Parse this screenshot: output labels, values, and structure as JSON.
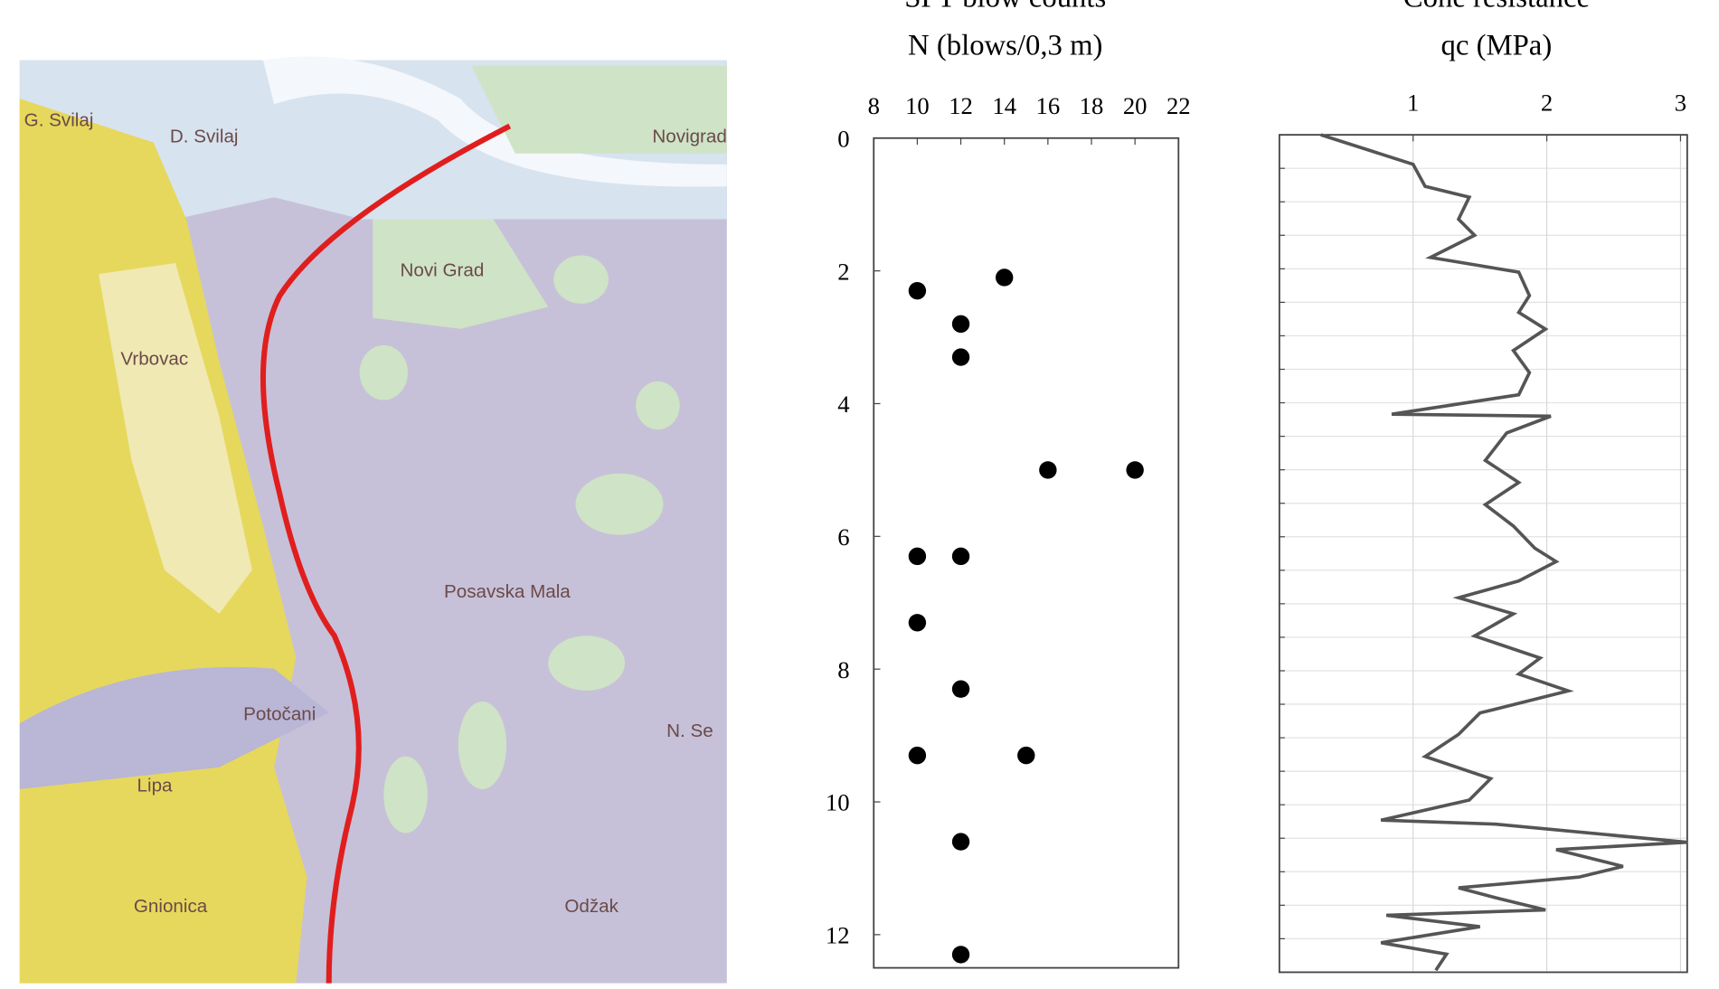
{
  "map_labels": [
    "G. Svilaj",
    "D. Svilaj",
    "Novigrad",
    "Novi Grad",
    "Vrbovac",
    "Posavska Mala",
    "Potočani",
    "N. Se",
    "Odžak",
    "Gnionica",
    "Lipa"
  ],
  "chart_data": [
    {
      "type": "scatter",
      "title": "SPT blow counts",
      "x_label": "N (blows/0,3 m)",
      "x": [
        14,
        10,
        12,
        12,
        16,
        20,
        10,
        12,
        10,
        12,
        10,
        15,
        12,
        12
      ],
      "values": [
        2.1,
        2.3,
        2.8,
        3.3,
        5,
        5,
        6.3,
        6.3,
        7.3,
        8.3,
        9.3,
        9.3,
        10.6,
        12.3
      ],
      "color": "#000000",
      "xlim": [
        8,
        22
      ],
      "xticks": [
        8,
        10,
        12,
        14,
        16,
        18,
        20,
        22
      ],
      "ylim": [
        0,
        12.5
      ],
      "yticks": [
        0,
        2,
        4,
        6,
        8,
        10,
        12
      ],
      "y_reversed": true,
      "grid": false
    },
    {
      "type": "line",
      "title": "Cone resistance",
      "x_label": "qc (MPa)",
      "x": [
        0.31,
        1.0,
        1.09,
        1.42,
        1.34,
        1.46,
        1.13,
        1.79,
        1.87,
        1.79,
        1.99,
        1.75,
        1.87,
        1.79,
        0.84,
        2.03,
        1.7,
        1.54,
        1.79,
        1.54,
        1.75,
        1.91,
        2.07,
        1.79,
        1.34,
        1.75,
        1.46,
        1.95,
        1.79,
        2.16,
        1.5,
        1.34,
        1.09,
        1.58,
        1.42,
        0.76,
        1.62,
        3.05,
        2.07,
        2.57,
        2.24,
        1.34,
        1.66,
        1.99,
        0.8,
        1.5,
        0.76,
        1.25,
        1.17
      ],
      "values": [
        0,
        0.44,
        0.77,
        0.93,
        1.26,
        1.5,
        1.83,
        2.05,
        2.4,
        2.65,
        2.9,
        3.22,
        3.55,
        3.88,
        4.17,
        4.2,
        4.45,
        4.86,
        5.19,
        5.52,
        5.84,
        6.17,
        6.37,
        6.66,
        6.91,
        7.15,
        7.48,
        7.81,
        8.05,
        8.3,
        8.63,
        8.95,
        9.28,
        9.61,
        9.93,
        10.23,
        10.29,
        10.56,
        10.67,
        10.92,
        11.08,
        11.24,
        11.41,
        11.57,
        11.65,
        11.82,
        12.06,
        12.23,
        12.47
      ],
      "color": "#555555",
      "xlim": [
        0,
        3.05
      ],
      "xticks": [
        1,
        2,
        3
      ],
      "ylim": [
        0,
        12.5
      ],
      "yticks": [
        0,
        0.5,
        1,
        1.5,
        2,
        2.5,
        3,
        3.5,
        4,
        4.5,
        5,
        5.5,
        6,
        6.5,
        7,
        7.5,
        8,
        8.5,
        9,
        9.5,
        10,
        10.5,
        11,
        11.5,
        12,
        12.5
      ],
      "y_reversed": true,
      "grid": true
    }
  ]
}
